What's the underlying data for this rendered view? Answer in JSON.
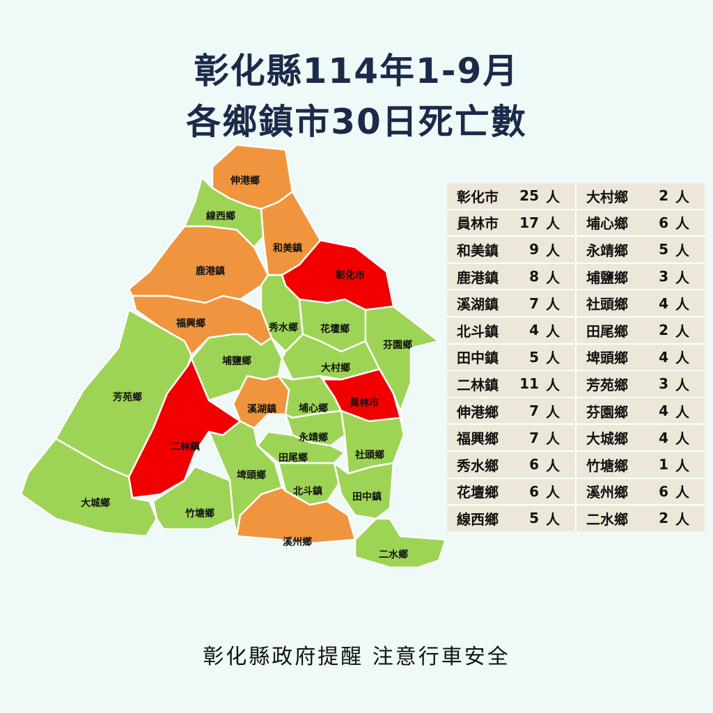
{
  "title": {
    "line1": "彰化縣114年1-9月",
    "line2": "各鄉鎮市30日死亡數"
  },
  "colors": {
    "high": "#f20000",
    "medium": "#f0953e",
    "low": "#9dd456",
    "title": "#1c2a4a",
    "background": "#eef9f8"
  },
  "unit": "人",
  "townships": [
    {
      "name": "彰化市",
      "deaths": 25,
      "level": "high"
    },
    {
      "name": "員林市",
      "deaths": 17,
      "level": "high"
    },
    {
      "name": "和美鎮",
      "deaths": 9,
      "level": "medium"
    },
    {
      "name": "鹿港鎮",
      "deaths": 8,
      "level": "medium"
    },
    {
      "name": "溪湖鎮",
      "deaths": 7,
      "level": "medium"
    },
    {
      "name": "北斗鎮",
      "deaths": 4,
      "level": "low"
    },
    {
      "name": "田中鎮",
      "deaths": 5,
      "level": "low"
    },
    {
      "name": "二林鎮",
      "deaths": 11,
      "level": "high"
    },
    {
      "name": "伸港鄉",
      "deaths": 7,
      "level": "medium"
    },
    {
      "name": "福興鄉",
      "deaths": 7,
      "level": "medium"
    },
    {
      "name": "秀水鄉",
      "deaths": 6,
      "level": "low"
    },
    {
      "name": "花壇鄉",
      "deaths": 6,
      "level": "low"
    },
    {
      "name": "線西鄉",
      "deaths": 5,
      "level": "low"
    },
    {
      "name": "大村鄉",
      "deaths": 2,
      "level": "low"
    },
    {
      "name": "埔心鄉",
      "deaths": 6,
      "level": "low"
    },
    {
      "name": "永靖鄉",
      "deaths": 5,
      "level": "low"
    },
    {
      "name": "埔鹽鄉",
      "deaths": 3,
      "level": "low"
    },
    {
      "name": "社頭鄉",
      "deaths": 4,
      "level": "low"
    },
    {
      "name": "田尾鄉",
      "deaths": 2,
      "level": "low"
    },
    {
      "name": "埤頭鄉",
      "deaths": 4,
      "level": "low"
    },
    {
      "name": "芳苑鄉",
      "deaths": 3,
      "level": "low"
    },
    {
      "name": "芬園鄉",
      "deaths": 4,
      "level": "low"
    },
    {
      "name": "大城鄉",
      "deaths": 4,
      "level": "low"
    },
    {
      "name": "竹塘鄉",
      "deaths": 1,
      "level": "low"
    },
    {
      "name": "溪州鄉",
      "deaths": 6,
      "level": "medium"
    },
    {
      "name": "二水鄉",
      "deaths": 2,
      "level": "low"
    }
  ],
  "footer": "彰化縣政府提醒 注意行車安全"
}
